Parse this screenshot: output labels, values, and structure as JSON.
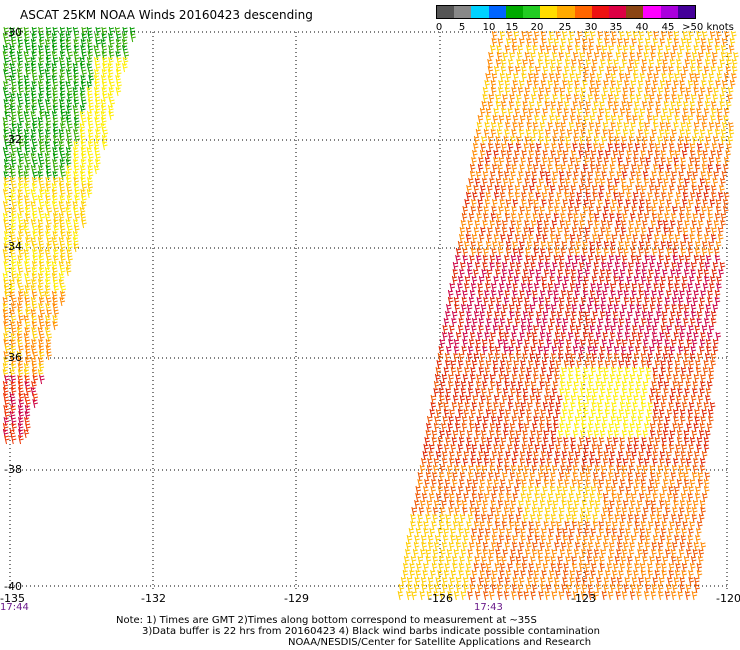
{
  "title": "ASCAT 25KM NOAA Winds 20160423 descending",
  "legend": {
    "colors": [
      "#555555",
      "#888888",
      "#00d2ff",
      "#0064ff",
      "#00aa00",
      "#22cc22",
      "#ffdd00",
      "#ffaa00",
      "#ff6600",
      "#ee1111",
      "#dd0044",
      "#8b4513",
      "#ff00ff",
      "#aa00dd",
      "#440099"
    ],
    "labels": [
      "0",
      "5",
      "10",
      "15",
      "20",
      "25",
      "30",
      "35",
      "40",
      "45",
      ">50 knots"
    ]
  },
  "map": {
    "lon_ticks": [
      "-135",
      "-132",
      "-129",
      "-126",
      "-123",
      "-120"
    ],
    "lat_ticks": [
      "-30",
      "-32",
      "-34",
      "-36",
      "-38",
      "-40"
    ],
    "time_labels": [
      "17:44",
      "17:43"
    ],
    "swaths": [
      {
        "name": "west-swath",
        "colors": [
          "#009900",
          "#33aa00",
          "#ffee00",
          "#ffcc00",
          "#ff8800",
          "#ee3300",
          "#cc0044"
        ]
      },
      {
        "name": "east-swath",
        "colors": [
          "#ffcc00",
          "#ff8800",
          "#ee5500",
          "#dd2200",
          "#cc0044",
          "#ffee00"
        ]
      }
    ]
  },
  "notes": {
    "line1": "Note: 1) Times are GMT 2)Times along bottom correspond to measurement at ~35S",
    "line2": "3)Data buffer is 22 hrs from 20160423 4) Black wind barbs indicate possible contamination",
    "line3": "NOAA/NESDIS/Center for Satellite Applications and Research"
  }
}
